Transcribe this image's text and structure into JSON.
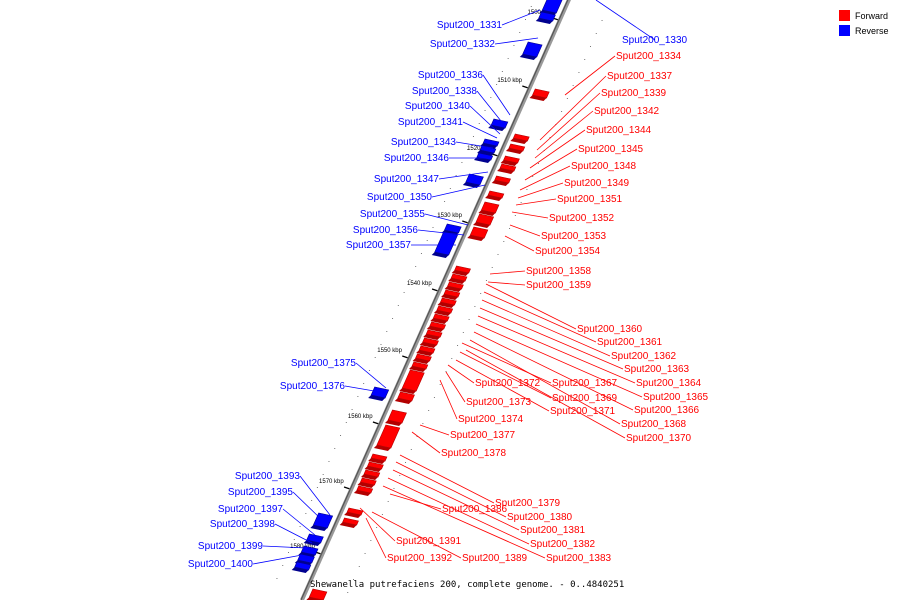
{
  "legend": {
    "forward_label": "Forward",
    "reverse_label": "Reverse",
    "forward_color": "#ff0000",
    "reverse_color": "#0000ff"
  },
  "caption": "Shewanella putrefaciens 200, complete genome. - 0..4840251",
  "kbp_ticks": [
    "1500 kbp",
    "1510 kbp",
    "1520 kbp",
    "1530 kbp",
    "1540 kbp",
    "1550 kbp",
    "1560 kbp",
    "1570 kbp",
    "1580 kbp"
  ],
  "reverse_genes": [
    "Sput200_1331",
    "Sput200_1332",
    "Sput200_1336",
    "Sput200_1338",
    "Sput200_1340",
    "Sput200_1341",
    "Sput200_1343",
    "Sput200_1346",
    "Sput200_1347",
    "Sput200_1350",
    "Sput200_1355",
    "Sput200_1356",
    "Sput200_1357",
    "Sput200_1375",
    "Sput200_1376",
    "Sput200_1393",
    "Sput200_1395",
    "Sput200_1397",
    "Sput200_1398",
    "Sput200_1399",
    "Sput200_1400",
    "Sput200_1330"
  ],
  "forward_genes": [
    "Sput200_1334",
    "Sput200_1337",
    "Sput200_1339",
    "Sput200_1342",
    "Sput200_1344",
    "Sput200_1345",
    "Sput200_1348",
    "Sput200_1349",
    "Sput200_1351",
    "Sput200_1352",
    "Sput200_1353",
    "Sput200_1354",
    "Sput200_1358",
    "Sput200_1359",
    "Sput200_1360",
    "Sput200_1361",
    "Sput200_1362",
    "Sput200_1363",
    "Sput200_1364",
    "Sput200_1365",
    "Sput200_1366",
    "Sput200_1368",
    "Sput200_1370",
    "Sput200_1367",
    "Sput200_1369",
    "Sput200_1371",
    "Sput200_1372",
    "Sput200_1373",
    "Sput200_1374",
    "Sput200_1377",
    "Sput200_1378",
    "Sput200_1379",
    "Sput200_1380",
    "Sput200_1381",
    "Sput200_1382",
    "Sput200_1383",
    "Sput200_1386",
    "Sput200_1391",
    "Sput200_1392",
    "Sput200_1389"
  ]
}
